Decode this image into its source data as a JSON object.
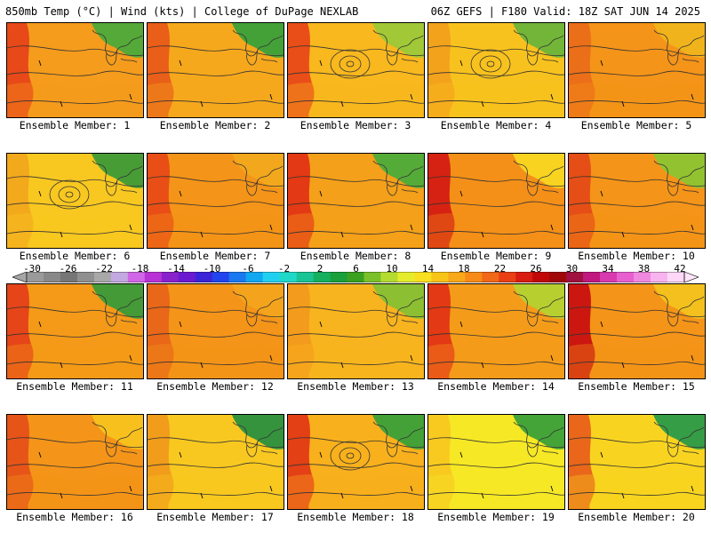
{
  "header": {
    "left": "850mb Temp (°C) | Wind (kts) | College of DuPage NEXLAB",
    "right": "06Z GEFS | F180 Valid: 18Z SAT JUN 14 2025"
  },
  "panel_label_prefix": "Ensemble Member: ",
  "members": [
    "1",
    "2",
    "3",
    "4",
    "5",
    "6",
    "7",
    "8",
    "9",
    "10",
    "11",
    "12",
    "13",
    "14",
    "15",
    "16",
    "17",
    "18",
    "19",
    "20"
  ],
  "colorbar": {
    "tick_labels": [
      "-30",
      "-26",
      "-22",
      "-18",
      "-14",
      "-10",
      "-6",
      "-2",
      "2",
      "6",
      "10",
      "14",
      "18",
      "22",
      "26",
      "30",
      "34",
      "38",
      "42"
    ],
    "colors": [
      "#9a9a9a",
      "#888888",
      "#767676",
      "#909090",
      "#a8a8a8",
      "#c4a8e0",
      "#d266e8",
      "#b833d6",
      "#8a22cc",
      "#6a1ad0",
      "#3a24d8",
      "#2244ee",
      "#1a78f0",
      "#10a8f0",
      "#20d0f0",
      "#20d8c8",
      "#18c494",
      "#14b060",
      "#18a03a",
      "#3aa020",
      "#7ac02a",
      "#b4dc30",
      "#e4ec2c",
      "#f8e020",
      "#f8c418",
      "#f8a818",
      "#f88a18",
      "#f06818",
      "#e84014",
      "#d81c10",
      "#c00808",
      "#a00808",
      "#a01040",
      "#c01880",
      "#d83ab0",
      "#e860d0",
      "#f088e0",
      "#f8b4ee",
      "#ffd8f8"
    ]
  },
  "panel_styles": {
    "1": {
      "base": "#f59c1c",
      "west": "#e64418",
      "ne": "#4caa3a"
    },
    "2": {
      "base": "#f6a81c",
      "west": "#e85a18",
      "ne": "#3aa03a"
    },
    "3": {
      "base": "#f8b81e",
      "west": "#e84818",
      "ne": "#9cc838"
    },
    "4": {
      "base": "#f8c21e",
      "west": "#f2a01c",
      "ne": "#6cb43a"
    },
    "5": {
      "base": "#f49418",
      "west": "#ea6c18",
      "ne": "#f0b41c"
    },
    "6": {
      "base": "#f8c820",
      "west": "#f2a81c",
      "ne": "#3e9a38"
    },
    "7": {
      "base": "#f49418",
      "west": "#e84a16",
      "ne": "#f2a81c"
    },
    "8": {
      "base": "#f4a01a",
      "west": "#e23414",
      "ne": "#4cac3a"
    },
    "9": {
      "base": "#f49018",
      "west": "#d41c12",
      "ne": "#f8d822"
    },
    "10": {
      "base": "#f49418",
      "west": "#e44a16",
      "ne": "#8cc432"
    },
    "11": {
      "base": "#f49a18",
      "west": "#e44018",
      "ne": "#3a9a38"
    },
    "12": {
      "base": "#f49418",
      "west": "#e86418",
      "ne": "#f2a41c"
    },
    "13": {
      "base": "#f8b41e",
      "west": "#f29a1c",
      "ne": "#86c034"
    },
    "14": {
      "base": "#f49c1a",
      "west": "#e23414",
      "ne": "#b4d232"
    },
    "15": {
      "base": "#f49418",
      "west": "#c81010",
      "ne": "#f2c21e"
    },
    "16": {
      "base": "#f49418",
      "west": "#e65018",
      "ne": "#f8c21e"
    },
    "17": {
      "base": "#f8c820",
      "west": "#f09a1a",
      "ne": "#2a9040"
    },
    "18": {
      "base": "#f8b01c",
      "west": "#e23a16",
      "ne": "#3aa03a"
    },
    "19": {
      "base": "#f6e824",
      "west": "#f8c820",
      "ne": "#3aa03a"
    },
    "20": {
      "base": "#f8d420",
      "west": "#e8601a",
      "ne": "#2a9a48"
    }
  }
}
